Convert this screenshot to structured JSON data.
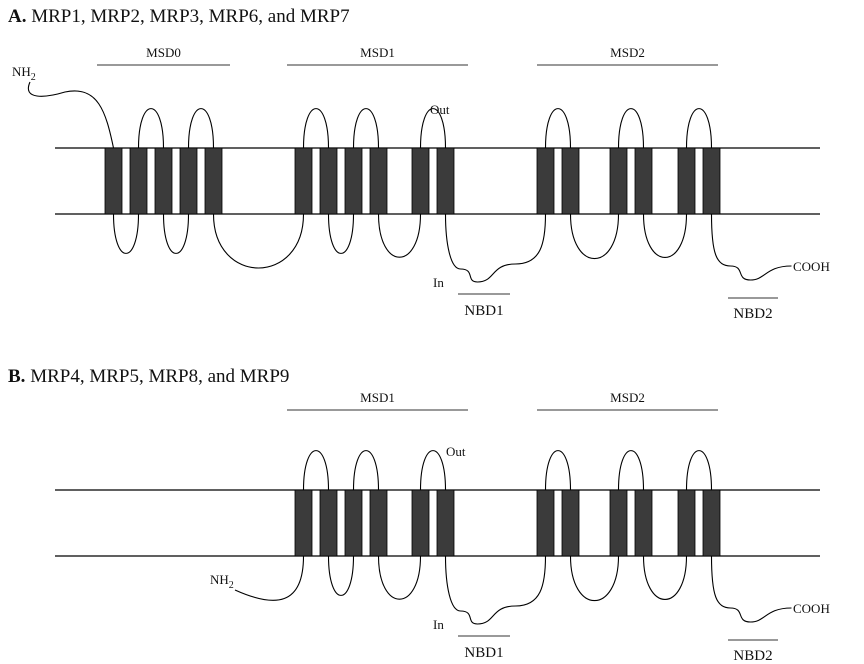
{
  "panels": [
    {
      "label": "A.",
      "title": "MRP1, MRP2, MRP3, MRP6, and MRP7",
      "domains": [
        "MSD0",
        "MSD1",
        "MSD2"
      ],
      "nh2": {
        "text": "NH",
        "sub": "2"
      },
      "out": "Out",
      "in": "In",
      "nbd1": "NBD1",
      "nbd2": "NBD2",
      "cooh": "COOH"
    },
    {
      "label": "B.",
      "title": "MRP4, MRP5, MRP8, and MRP9",
      "domains": [
        "MSD1",
        "MSD2"
      ],
      "nh2": {
        "text": "NH",
        "sub": "2"
      },
      "out": "Out",
      "in": "In",
      "nbd1": "NBD1",
      "nbd2": "NBD2",
      "cooh": "COOH"
    }
  ]
}
